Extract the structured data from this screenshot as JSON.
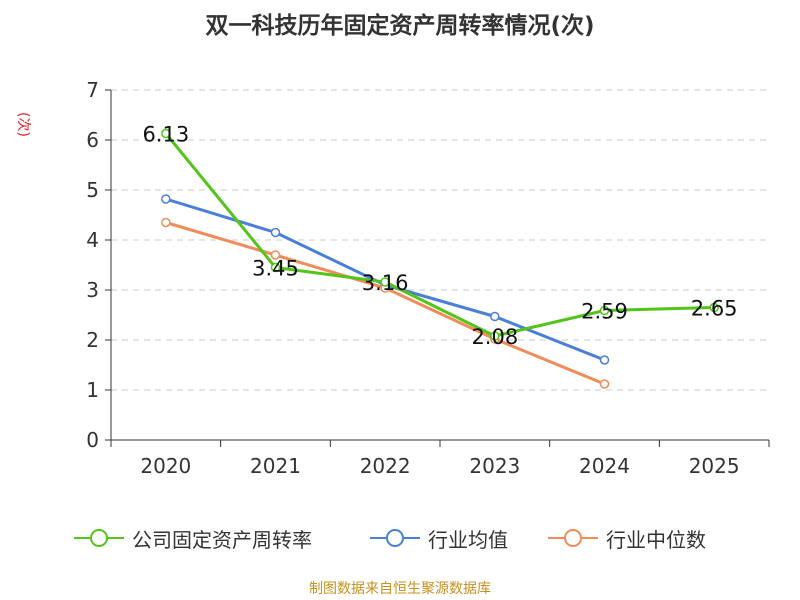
{
  "chart_data": {
    "type": "line",
    "title": "双一科技历年固定资产周转率情况(次)",
    "ylabel": "(次)",
    "xlabel": "",
    "ylim": [
      0,
      7
    ],
    "yticks": [
      0,
      1,
      2,
      3,
      4,
      5,
      6,
      7
    ],
    "categories": [
      "2020",
      "2021",
      "2022",
      "2023",
      "2024",
      "2025"
    ],
    "grid": true,
    "legend_position": "bottom",
    "series": [
      {
        "name": "公司固定资产周转率",
        "color": "#52c41a",
        "values": [
          6.13,
          3.45,
          3.16,
          2.08,
          2.59,
          2.65
        ],
        "labels": [
          "6.13",
          "3.45",
          "3.16",
          "2.08",
          "2.59",
          "2.65"
        ]
      },
      {
        "name": "行业均值",
        "color": "#4a7fd8",
        "values": [
          4.82,
          4.15,
          3.1,
          2.47,
          1.6,
          null
        ]
      },
      {
        "name": "行业中位数",
        "color": "#f08c5a",
        "values": [
          4.35,
          3.7,
          3.04,
          2.02,
          1.12,
          null
        ]
      }
    ]
  },
  "source": "制图数据来自恒生聚源数据库"
}
